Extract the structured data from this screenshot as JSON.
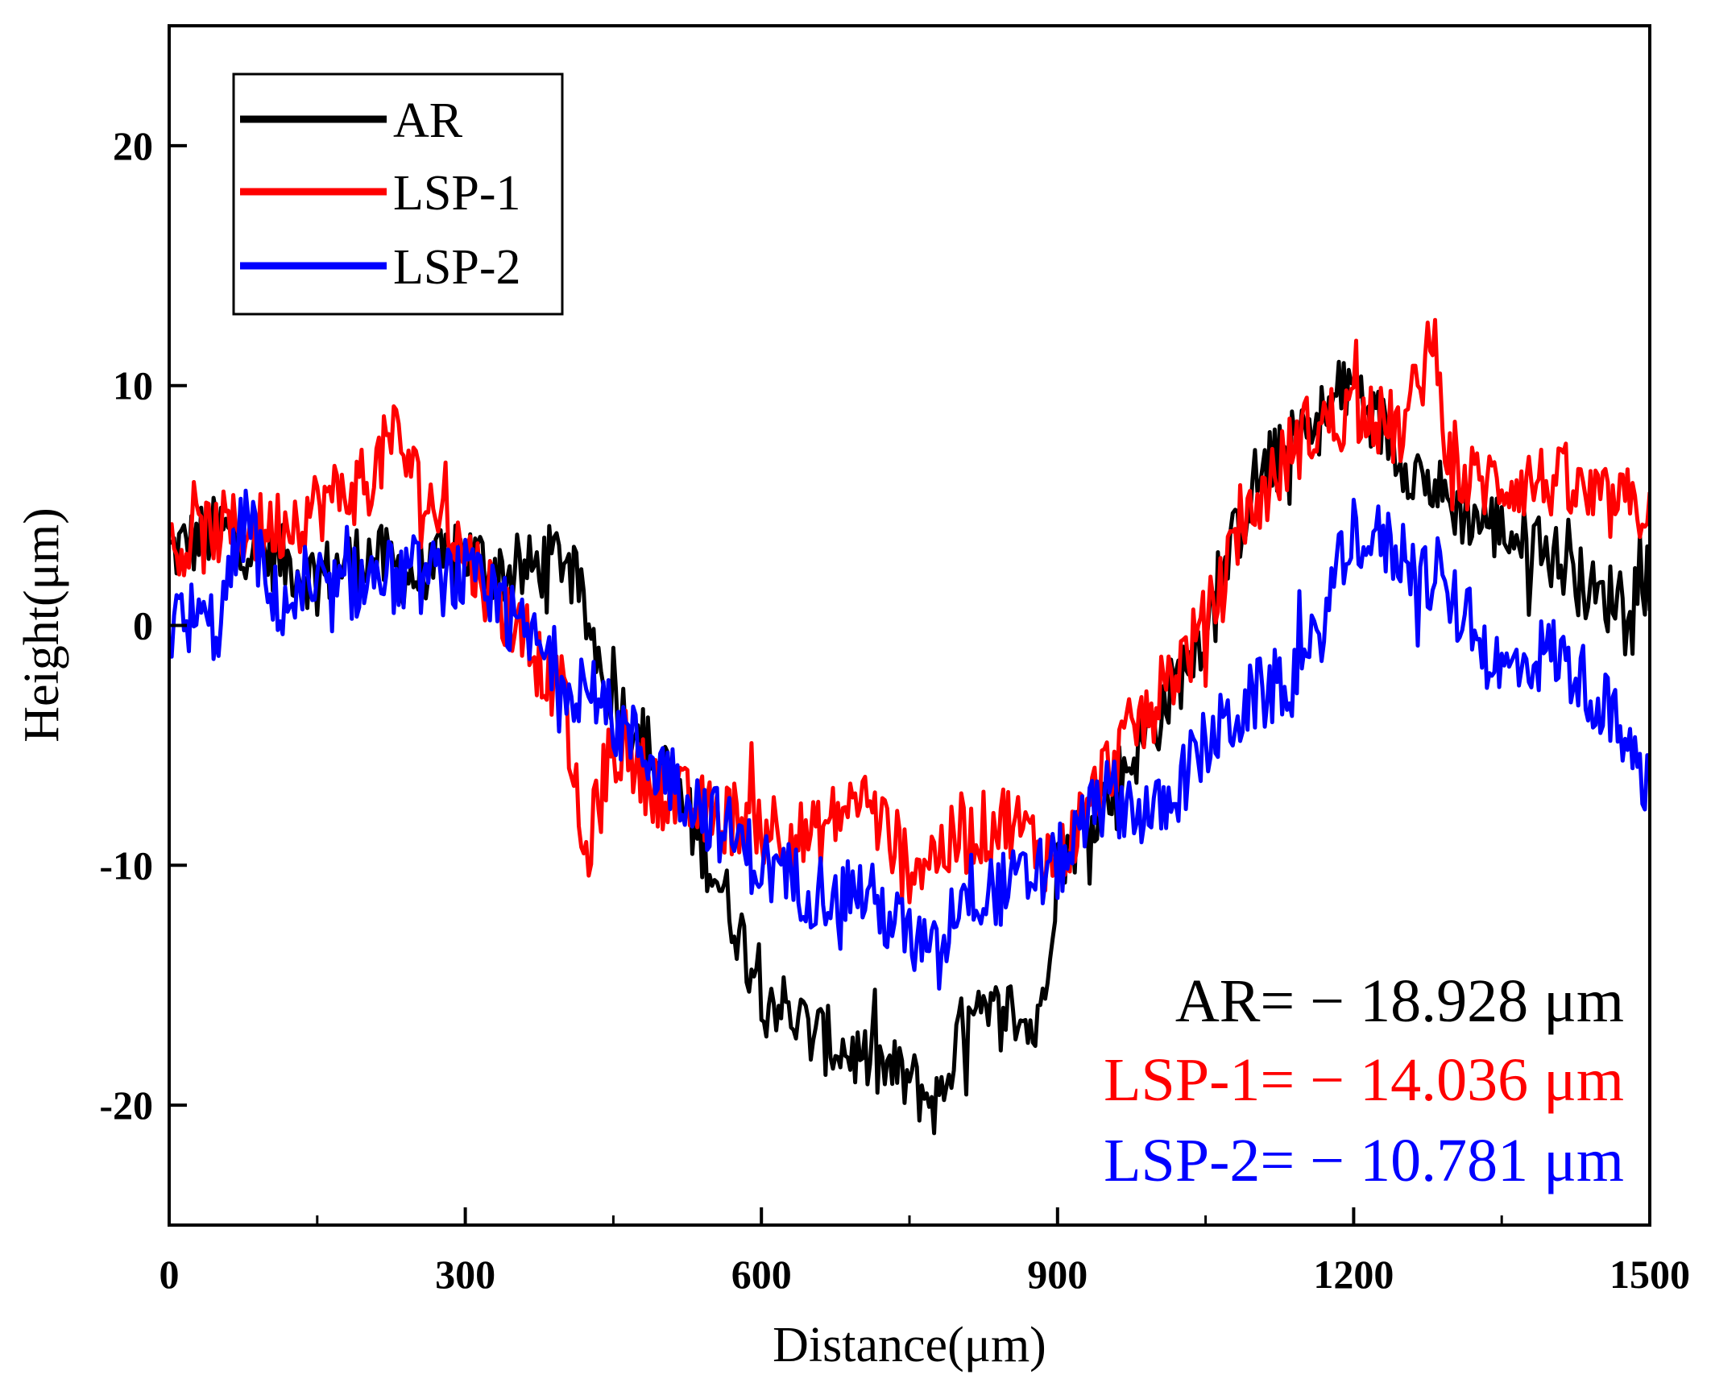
{
  "chart_data": {
    "type": "line",
    "title": "",
    "xlabel": "Distance(μm)",
    "ylabel": "Height(μm)",
    "xlim": [
      0,
      1500
    ],
    "ylim": [
      -25,
      25
    ],
    "xticks": [
      0,
      300,
      600,
      900,
      1200,
      1500
    ],
    "yticks": [
      -20,
      -10,
      0,
      10,
      20
    ],
    "x_minor_step": 150,
    "grid": false,
    "legend_position": "top-left",
    "series": [
      {
        "name": "AR",
        "color": "#000000",
        "x": [
          0,
          50,
          100,
          150,
          200,
          250,
          300,
          350,
          400,
          450,
          500,
          550,
          600,
          650,
          700,
          750,
          780,
          800,
          850,
          880,
          900,
          950,
          1000,
          1050,
          1100,
          1150,
          1200,
          1250,
          1300,
          1350,
          1400,
          1450,
          1500
        ],
        "y": [
          3,
          4,
          3,
          2,
          3,
          2,
          3,
          2,
          3,
          -3,
          -6,
          -10,
          -15,
          -17,
          -18,
          -19,
          -20,
          -17,
          -16,
          -17,
          -10,
          -7,
          -4,
          0,
          6,
          8,
          10,
          7,
          5,
          4,
          3,
          1,
          2
        ],
        "noise": 1.5
      },
      {
        "name": "LSP-1",
        "color": "#ff0000",
        "x": [
          0,
          50,
          100,
          150,
          200,
          230,
          250,
          300,
          350,
          400,
          420,
          450,
          500,
          550,
          600,
          650,
          700,
          750,
          800,
          850,
          900,
          950,
          1000,
          1050,
          1100,
          1150,
          1200,
          1250,
          1280,
          1300,
          1350,
          1400,
          1450,
          1500
        ],
        "y": [
          3,
          4,
          4,
          5,
          6,
          8,
          6,
          3,
          0,
          -3,
          -10,
          -5,
          -7,
          -8,
          -8,
          -9,
          -7,
          -10,
          -9,
          -8,
          -10,
          -6,
          -3,
          0,
          5,
          8,
          9,
          8,
          12,
          6,
          6,
          6,
          5,
          5
        ],
        "noise": 1.6
      },
      {
        "name": "LSP-2",
        "color": "#0000ff",
        "x": [
          0,
          50,
          80,
          100,
          150,
          200,
          250,
          300,
          350,
          400,
          450,
          500,
          550,
          600,
          650,
          700,
          750,
          780,
          800,
          850,
          900,
          950,
          1000,
          1050,
          1100,
          1150,
          1200,
          1250,
          1300,
          1350,
          1400,
          1450,
          1500
        ],
        "y": [
          0,
          0,
          5,
          1,
          1,
          2,
          2,
          2,
          0,
          -2,
          -4,
          -6,
          -8,
          -10,
          -11,
          -11,
          -13,
          -14,
          -11,
          -11,
          -10,
          -7,
          -8,
          -5,
          -3,
          -2,
          4,
          3,
          1,
          -2,
          -1,
          -3,
          -7
        ],
        "noise": 1.6
      }
    ],
    "annotations": [
      {
        "series": "AR",
        "label": "AR=",
        "value": "− 18.928 μm",
        "color": "#000000"
      },
      {
        "series": "LSP-1",
        "label": "LSP-1=",
        "value": "− 14.036 μm",
        "color": "#ff0000"
      },
      {
        "series": "LSP-2",
        "label": "LSP-2=",
        "value": "− 10.781 μm",
        "color": "#0000ff"
      }
    ]
  }
}
